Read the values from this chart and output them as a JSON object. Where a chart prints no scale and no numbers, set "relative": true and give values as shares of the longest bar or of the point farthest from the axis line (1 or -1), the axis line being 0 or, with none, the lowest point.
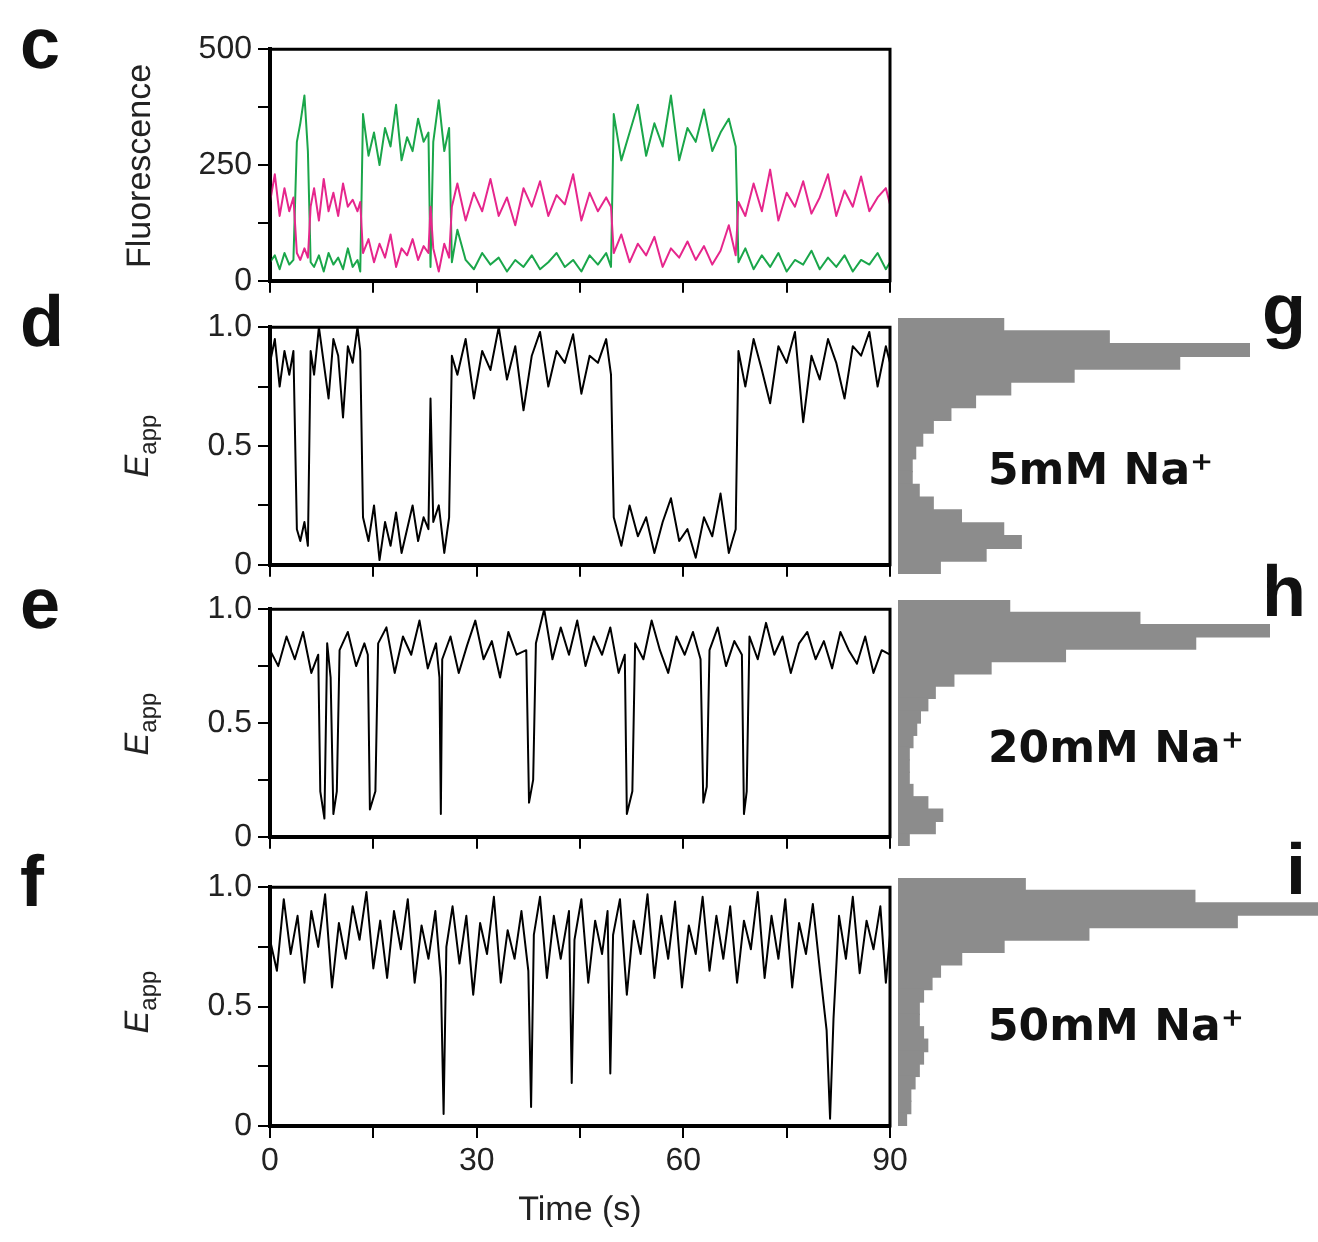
{
  "chart_data": [
    {
      "type": "line",
      "title": "c",
      "ylabel": "Fluorescence",
      "xlim": [
        0,
        90
      ],
      "xticks": [
        0,
        {
          "value": 15,
          "label": null
        },
        30,
        {
          "value": 45,
          "label": null
        },
        60,
        {
          "value": 75,
          "label": null
        },
        90
      ],
      "ylim": [
        0,
        500
      ],
      "yticks": [
        0,
        {
          "value": 125,
          "label": null
        },
        250,
        {
          "value": 375,
          "label": null
        },
        500
      ],
      "tick_labels": "y",
      "series": [
        {
          "color": "#e6268c",
          "x": [
            0,
            0.7,
            1.4,
            2.1,
            2.8,
            3.4,
            3.9,
            4.4,
            5,
            5.5,
            5.9,
            6.4,
            7.1,
            7.8,
            8.5,
            9.2,
            9.9,
            10.6,
            11.3,
            12,
            12.7,
            13.1,
            13.5,
            14.3,
            15.1,
            15.9,
            16.7,
            17.5,
            18.3,
            19.1,
            19.9,
            20.7,
            21.5,
            22.3,
            23,
            23.3,
            23.7,
            24.5,
            25.3,
            26,
            26.4,
            27.2,
            28.4,
            29.6,
            30.8,
            32,
            33.2,
            34.4,
            35.6,
            36.8,
            38,
            39.2,
            40.4,
            41.6,
            42.8,
            44,
            45.2,
            46.4,
            47.6,
            48.8,
            49.5,
            49.9,
            51,
            52.2,
            53.4,
            54.6,
            55.8,
            57,
            58.2,
            59.4,
            60.6,
            61.8,
            63,
            64.2,
            65.4,
            66.6,
            67.6,
            68,
            69,
            70.2,
            71.4,
            72.6,
            73.8,
            75,
            76.2,
            77.4,
            78.6,
            79.8,
            81,
            82.2,
            83.4,
            84.6,
            85.8,
            87,
            88.2,
            89.4,
            90
          ],
          "values": [
            170,
            230,
            140,
            200,
            150,
            180,
            60,
            45,
            70,
            50,
            160,
            200,
            130,
            220,
            150,
            190,
            140,
            210,
            160,
            175,
            150,
            170,
            60,
            90,
            40,
            80,
            50,
            100,
            30,
            70,
            55,
            90,
            45,
            75,
            60,
            160,
            70,
            20,
            80,
            50,
            160,
            210,
            130,
            190,
            150,
            220,
            140,
            180,
            120,
            200,
            160,
            215,
            140,
            185,
            165,
            230,
            130,
            190,
            150,
            180,
            160,
            60,
            100,
            40,
            80,
            55,
            95,
            30,
            70,
            50,
            85,
            45,
            75,
            35,
            65,
            120,
            55,
            170,
            140,
            210,
            150,
            240,
            130,
            190,
            160,
            215,
            145,
            180,
            230,
            140,
            195,
            160,
            225,
            150,
            180,
            200,
            165
          ]
        },
        {
          "color": "#1aa64a",
          "x": [
            0,
            0.7,
            1.4,
            2.1,
            2.8,
            3.4,
            3.9,
            4.4,
            5,
            5.5,
            5.9,
            6.4,
            7.1,
            7.8,
            8.5,
            9.2,
            9.9,
            10.6,
            11.3,
            12,
            12.7,
            13.1,
            13.5,
            14.3,
            15.1,
            15.9,
            16.7,
            17.5,
            18.3,
            19.1,
            19.9,
            20.7,
            21.5,
            22.3,
            23,
            23.3,
            23.7,
            24.5,
            25.3,
            26,
            26.4,
            27.2,
            28.4,
            29.6,
            30.8,
            32,
            33.2,
            34.4,
            35.6,
            36.8,
            38,
            39.2,
            40.4,
            41.6,
            42.8,
            44,
            45.2,
            46.4,
            47.6,
            48.8,
            49.5,
            49.9,
            51,
            52.2,
            53.4,
            54.6,
            55.8,
            57,
            58.2,
            59.4,
            60.6,
            61.8,
            63,
            64.2,
            65.4,
            66.6,
            67.6,
            68,
            69,
            70.2,
            71.4,
            72.6,
            73.8,
            75,
            76.2,
            77.4,
            78.6,
            79.8,
            81,
            82.2,
            83.4,
            84.6,
            85.8,
            87,
            88.2,
            89.4,
            90
          ],
          "values": [
            40,
            55,
            25,
            60,
            35,
            45,
            300,
            340,
            400,
            280,
            40,
            30,
            55,
            20,
            60,
            35,
            50,
            25,
            70,
            30,
            45,
            20,
            360,
            270,
            320,
            250,
            330,
            290,
            380,
            260,
            310,
            280,
            350,
            300,
            320,
            30,
            300,
            390,
            280,
            330,
            40,
            110,
            45,
            25,
            60,
            35,
            50,
            20,
            45,
            30,
            55,
            25,
            40,
            60,
            30,
            45,
            20,
            55,
            35,
            60,
            30,
            360,
            260,
            320,
            380,
            270,
            340,
            290,
            400,
            260,
            330,
            300,
            370,
            280,
            320,
            350,
            290,
            40,
            70,
            25,
            55,
            30,
            60,
            20,
            45,
            35,
            65,
            25,
            50,
            30,
            55,
            20,
            45,
            35,
            60,
            25,
            40
          ]
        }
      ]
    },
    {
      "type": "line",
      "title": "d",
      "ylabel": "E$_{app}$",
      "xlim": [
        0,
        90
      ],
      "xticks": [
        0,
        {
          "value": 15,
          "label": null
        },
        30,
        {
          "value": 45,
          "label": null
        },
        60,
        {
          "value": 75,
          "label": null
        },
        90
      ],
      "ylim": [
        0,
        1
      ],
      "yticks": [
        0,
        {
          "value": 0.25,
          "label": null
        },
        0.5,
        {
          "value": 0.75,
          "label": null
        },
        {
          "value": 1,
          "label": "1.0"
        }
      ],
      "tick_labels": "y",
      "series": [
        {
          "color": "#000000",
          "x": [
            0,
            0.7,
            1.4,
            2.1,
            2.8,
            3.4,
            3.9,
            4.4,
            5,
            5.5,
            5.9,
            6.4,
            7.1,
            7.8,
            8.5,
            9.2,
            9.9,
            10.6,
            11.3,
            12,
            12.7,
            13.1,
            13.5,
            14.3,
            15.1,
            15.9,
            16.7,
            17.5,
            18.3,
            19.1,
            19.9,
            20.7,
            21.5,
            22.3,
            23,
            23.3,
            23.7,
            24.5,
            25.3,
            26,
            26.4,
            27.2,
            28.4,
            29.6,
            30.8,
            32,
            33.2,
            34.4,
            35.6,
            36.8,
            38,
            39.2,
            40.4,
            41.6,
            42.8,
            44,
            45.2,
            46.4,
            47.6,
            48.8,
            49.5,
            49.9,
            51,
            52.2,
            53.4,
            54.6,
            55.8,
            57,
            58.2,
            59.4,
            60.6,
            61.8,
            63,
            64.2,
            65.4,
            66.6,
            67.6,
            68,
            69,
            70.2,
            71.4,
            72.6,
            73.8,
            75,
            76.2,
            77.4,
            78.6,
            79.8,
            81,
            82.2,
            83.4,
            84.6,
            85.8,
            87,
            88.2,
            89.4,
            90
          ],
          "values": [
            0.85,
            0.95,
            0.75,
            0.9,
            0.8,
            0.9,
            0.15,
            0.1,
            0.18,
            0.08,
            0.9,
            0.8,
            1,
            0.85,
            0.7,
            0.95,
            0.88,
            0.62,
            0.92,
            0.85,
            1,
            0.9,
            0.2,
            0.1,
            0.25,
            0.02,
            0.18,
            0.08,
            0.22,
            0.05,
            0.15,
            0.25,
            0.1,
            0.2,
            0.15,
            0.7,
            0.18,
            0.25,
            0.05,
            0.2,
            0.88,
            0.8,
            0.95,
            0.7,
            0.9,
            0.82,
            1,
            0.78,
            0.92,
            0.65,
            0.88,
            0.98,
            0.75,
            0.9,
            0.85,
            0.97,
            0.72,
            0.88,
            0.85,
            0.95,
            0.8,
            0.2,
            0.08,
            0.25,
            0.12,
            0.2,
            0.05,
            0.18,
            0.28,
            0.1,
            0.15,
            0.03,
            0.2,
            0.12,
            0.3,
            0.05,
            0.15,
            0.9,
            0.75,
            0.95,
            0.82,
            0.68,
            0.92,
            0.85,
            0.98,
            0.6,
            0.88,
            0.78,
            0.95,
            0.85,
            0.7,
            0.92,
            0.88,
            0.98,
            0.75,
            0.92,
            0.85
          ]
        }
      ]
    },
    {
      "type": "line",
      "title": "e",
      "ylabel": "E$_{app}$",
      "xlim": [
        0,
        90
      ],
      "xticks": [
        0,
        {
          "value": 15,
          "label": null
        },
        30,
        {
          "value": 45,
          "label": null
        },
        60,
        {
          "value": 75,
          "label": null
        },
        90
      ],
      "ylim": [
        0,
        1
      ],
      "yticks": [
        0,
        {
          "value": 0.25,
          "label": null
        },
        0.5,
        {
          "value": 0.75,
          "label": null
        },
        {
          "value": 1,
          "label": "1.0"
        }
      ],
      "tick_labels": "y",
      "series": [
        {
          "color": "#000000",
          "x": [
            0,
            1.2,
            2.4,
            3.6,
            4.8,
            6,
            7,
            7.3,
            7.9,
            8.3,
            8.8,
            9.2,
            9.7,
            10.1,
            11.3,
            12.5,
            13.7,
            14.2,
            14.5,
            15.3,
            15.7,
            16.9,
            18.1,
            19.3,
            20.5,
            21.7,
            22.9,
            24.1,
            24.6,
            24.8,
            25,
            26.2,
            27.4,
            28.6,
            29.8,
            31,
            32.2,
            33.4,
            34.6,
            35.8,
            37.2,
            37.6,
            38.2,
            38.6,
            39.8,
            41,
            42.2,
            43.4,
            44.6,
            45.8,
            47,
            48.2,
            49.4,
            50.6,
            51.5,
            51.8,
            52.6,
            53,
            54.2,
            55.4,
            56.6,
            57.8,
            59,
            60.2,
            61.4,
            62.5,
            62.9,
            63.4,
            63.8,
            65,
            66.2,
            67.4,
            68.5,
            68.8,
            69.2,
            69.6,
            70.8,
            72,
            73.2,
            74.4,
            75.6,
            76.8,
            78,
            79.2,
            80.4,
            81.6,
            82.8,
            84,
            85.2,
            86.4,
            87.6,
            88.8,
            90
          ],
          "values": [
            0.82,
            0.75,
            0.88,
            0.78,
            0.9,
            0.72,
            0.8,
            0.2,
            0.08,
            0.85,
            0.7,
            0.1,
            0.2,
            0.82,
            0.9,
            0.75,
            0.85,
            0.8,
            0.12,
            0.2,
            0.85,
            0.92,
            0.72,
            0.88,
            0.8,
            0.95,
            0.74,
            0.85,
            0.7,
            0.1,
            0.78,
            0.88,
            0.72,
            0.84,
            0.95,
            0.78,
            0.86,
            0.7,
            0.9,
            0.8,
            0.82,
            0.15,
            0.25,
            0.85,
            1,
            0.78,
            0.92,
            0.8,
            0.95,
            0.75,
            0.88,
            0.8,
            0.92,
            0.72,
            0.8,
            0.1,
            0.2,
            0.85,
            0.78,
            0.95,
            0.82,
            0.72,
            0.88,
            0.8,
            0.9,
            0.78,
            0.15,
            0.22,
            0.82,
            0.92,
            0.75,
            0.86,
            0.8,
            0.1,
            0.2,
            0.88,
            0.78,
            0.94,
            0.8,
            0.88,
            0.72,
            0.85,
            0.9,
            0.78,
            0.86,
            0.74,
            0.9,
            0.82,
            0.76,
            0.88,
            0.72,
            0.82,
            0.8
          ]
        }
      ]
    },
    {
      "type": "line",
      "title": "f",
      "xlabel": "Time (s)",
      "ylabel": "E$_{app}$",
      "xlim": [
        0,
        90
      ],
      "xticks": [
        0,
        {
          "value": 15,
          "label": null
        },
        30,
        {
          "value": 45,
          "label": null
        },
        60,
        {
          "value": 75,
          "label": null
        },
        90
      ],
      "ylim": [
        0,
        1
      ],
      "yticks": [
        0,
        {
          "value": 0.25,
          "label": null
        },
        0.5,
        {
          "value": 0.75,
          "label": null
        },
        {
          "value": 1,
          "label": "1.0"
        }
      ],
      "series": [
        {
          "color": "#000000",
          "x": [
            0,
            1,
            2,
            3,
            4,
            5,
            6,
            7,
            8,
            9,
            10,
            11,
            12,
            13,
            14,
            15,
            16,
            17,
            18,
            19,
            20,
            21,
            22,
            23,
            24,
            24.8,
            25.2,
            25.6,
            26.5,
            27.5,
            28.5,
            29.5,
            30.5,
            31.5,
            32.5,
            33.5,
            34.5,
            35.5,
            36.5,
            37.5,
            37.9,
            38.3,
            39.2,
            40.2,
            41.2,
            42.2,
            43.4,
            43.8,
            44.2,
            45.2,
            46.2,
            47.2,
            48.2,
            49,
            49.4,
            49.8,
            50.8,
            51.8,
            52.8,
            53.8,
            54.8,
            55.8,
            56.8,
            57.8,
            58.8,
            59.8,
            60.8,
            61.8,
            62.8,
            63.8,
            64.8,
            65.8,
            66.8,
            67.8,
            68.8,
            69.8,
            70.8,
            71.8,
            72.8,
            73.8,
            74.8,
            75.8,
            76.8,
            77.8,
            78.8,
            79.8,
            80.8,
            81.3,
            81.8,
            82.6,
            83.6,
            84.6,
            85.6,
            86.6,
            87.6,
            88.6,
            89.4,
            90
          ],
          "values": [
            0.78,
            0.65,
            0.95,
            0.72,
            0.88,
            0.6,
            0.9,
            0.75,
            0.97,
            0.58,
            0.85,
            0.7,
            0.92,
            0.78,
            0.98,
            0.66,
            0.86,
            0.62,
            0.9,
            0.74,
            0.95,
            0.6,
            0.84,
            0.7,
            0.9,
            0.62,
            0.05,
            0.75,
            0.92,
            0.68,
            0.88,
            0.55,
            0.85,
            0.72,
            0.96,
            0.6,
            0.82,
            0.7,
            0.9,
            0.65,
            0.08,
            0.8,
            0.96,
            0.62,
            0.88,
            0.7,
            0.9,
            0.18,
            0.78,
            0.95,
            0.6,
            0.86,
            0.72,
            0.9,
            0.22,
            0.8,
            0.95,
            0.55,
            0.86,
            0.72,
            0.97,
            0.62,
            0.88,
            0.7,
            0.94,
            0.58,
            0.84,
            0.72,
            0.96,
            0.65,
            0.88,
            0.7,
            0.92,
            0.6,
            0.86,
            0.74,
            0.98,
            0.62,
            0.88,
            0.7,
            0.95,
            0.58,
            0.85,
            0.72,
            0.93,
            0.66,
            0.4,
            0.03,
            0.45,
            0.88,
            0.7,
            0.96,
            0.64,
            0.86,
            0.74,
            0.92,
            0.6,
            0.8
          ]
        }
      ]
    },
    {
      "type": "bar",
      "title": "g",
      "orientation": "horizontal",
      "relative": true,
      "tick_labels": false,
      "color": "#8c8c8c",
      "annotations": [
        "5mM Na⁺"
      ],
      "categories": [
        null,
        null,
        null,
        null,
        null,
        null,
        null,
        null,
        null,
        null,
        null,
        null,
        null,
        null,
        null,
        null,
        null,
        null,
        null,
        null
      ],
      "values": [
        0.3,
        0.6,
        1,
        0.8,
        0.5,
        0.32,
        0.22,
        0.15,
        0.1,
        0.07,
        0.05,
        0.04,
        0.04,
        0.06,
        0.1,
        0.18,
        0.3,
        0.35,
        0.25,
        0.12
      ]
    },
    {
      "type": "bar",
      "title": "h",
      "orientation": "horizontal",
      "relative": true,
      "tick_labels": false,
      "color": "#8c8c8c",
      "annotations": [
        "20mM Na⁺"
      ],
      "categories": [
        null,
        null,
        null,
        null,
        null,
        null,
        null,
        null,
        null,
        null,
        null,
        null,
        null,
        null,
        null,
        null,
        null,
        null,
        null,
        null
      ],
      "values": [
        0.3,
        0.65,
        1,
        0.8,
        0.45,
        0.25,
        0.15,
        0.1,
        0.08,
        0.06,
        0.05,
        0.04,
        0.03,
        0.03,
        0.03,
        0.04,
        0.08,
        0.12,
        0.1,
        0.03
      ]
    },
    {
      "type": "bar",
      "title": "i",
      "orientation": "horizontal",
      "relative": true,
      "tick_labels": false,
      "color": "#8c8c8c",
      "annotations": [
        "50mM Na⁺"
      ],
      "categories": [
        null,
        null,
        null,
        null,
        null,
        null,
        null,
        null,
        null,
        null,
        null,
        null,
        null,
        null,
        null,
        null,
        null,
        null,
        null,
        null
      ],
      "values": [
        0.3,
        0.7,
        1,
        0.8,
        0.45,
        0.25,
        0.15,
        0.1,
        0.08,
        0.06,
        0.05,
        0.05,
        0.06,
        0.07,
        0.06,
        0.05,
        0.04,
        0.03,
        0.03,
        0.02
      ]
    }
  ]
}
